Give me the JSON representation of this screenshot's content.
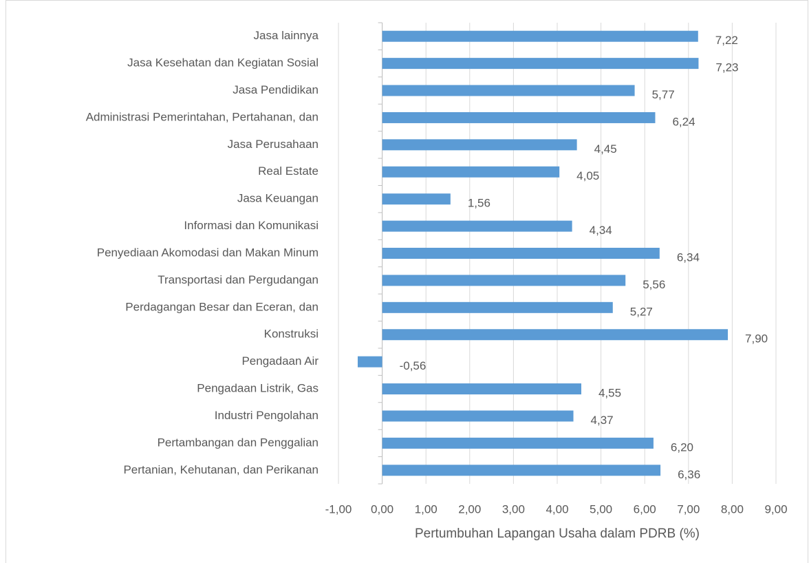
{
  "chart_data": {
    "type": "bar",
    "orientation": "horizontal",
    "x_label": "Pertumbuhan Lapangan Usaha dalam PDRB (%)",
    "categories": [
      "Jasa lainnya",
      "Jasa Kesehatan dan Kegiatan Sosial",
      "Jasa Pendidikan",
      "Administrasi Pemerintahan, Pertahanan, dan",
      "Jasa Perusahaan",
      "Real Estate",
      "Jasa Keuangan",
      "Informasi dan Komunikasi",
      "Penyediaan Akomodasi dan Makan Minum",
      "Transportasi dan Pergudangan",
      "Perdagangan Besar dan Eceran, dan",
      "Konstruksi",
      "Pengadaan Air",
      "Pengadaan Listrik, Gas",
      "Industri Pengolahan",
      "Pertambangan dan Penggalian",
      "Pertanian, Kehutanan, dan Perikanan"
    ],
    "values": [
      7.22,
      7.23,
      5.77,
      6.24,
      4.45,
      4.05,
      1.56,
      4.34,
      6.34,
      5.56,
      5.27,
      7.9,
      -0.56,
      4.55,
      4.37,
      6.2,
      6.36
    ],
    "value_labels": [
      "7,22",
      "7,23",
      "5,77",
      "6,24",
      "4,45",
      "4,05",
      "1,56",
      "4,34",
      "6,34",
      "5,56",
      "5,27",
      "7,90",
      "-0,56",
      "4,55",
      "4,37",
      "6,20",
      "6,36"
    ],
    "color": "#5b9bd5",
    "xlim": [
      -1,
      9
    ],
    "xticks": [
      {
        "value": -1,
        "label": "-1,00"
      },
      {
        "value": 0,
        "label": "0,00"
      },
      {
        "value": 1,
        "label": "1,00"
      },
      {
        "value": 2,
        "label": "2,00"
      },
      {
        "value": 3,
        "label": "3,00"
      },
      {
        "value": 4,
        "label": "4,00"
      },
      {
        "value": 5,
        "label": "5,00"
      },
      {
        "value": 6,
        "label": "6,00"
      },
      {
        "value": 7,
        "label": "7,00"
      },
      {
        "value": 8,
        "label": "8,00"
      },
      {
        "value": 9,
        "label": "9,00"
      }
    ],
    "grid": true
  }
}
